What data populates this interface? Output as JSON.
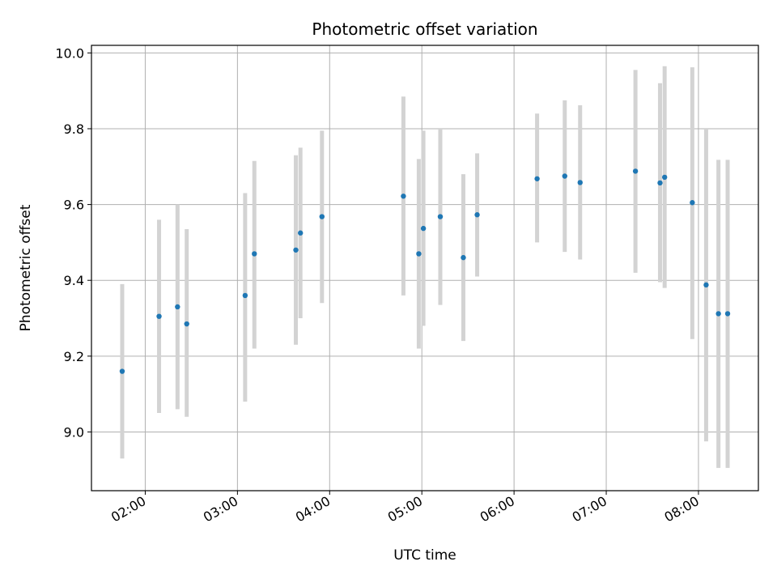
{
  "chart_data": {
    "type": "scatter",
    "title": "Photometric offset variation",
    "xlabel": "UTC time",
    "ylabel": "Photometric offset",
    "xlim": [
      "01:25",
      "08:39"
    ],
    "ylim": [
      8.845,
      10.02
    ],
    "grid": true,
    "x_ticks": [
      "02:00",
      "03:00",
      "04:00",
      "05:00",
      "06:00",
      "07:00",
      "08:00"
    ],
    "y_ticks": [
      "9.0",
      "9.2",
      "9.4",
      "9.6",
      "9.8",
      "10.0"
    ],
    "series": [
      {
        "marker_color": "#1f77b4",
        "errorbar_color": "#d3d3d3",
        "points": [
          {
            "x": "01:45",
            "y": 9.16,
            "low": 8.93,
            "high": 9.39
          },
          {
            "x": "02:09",
            "y": 9.305,
            "low": 9.05,
            "high": 9.56
          },
          {
            "x": "02:21",
            "y": 9.33,
            "low": 9.06,
            "high": 9.6
          },
          {
            "x": "02:27",
            "y": 9.285,
            "low": 9.04,
            "high": 9.535
          },
          {
            "x": "03:05",
            "y": 9.36,
            "low": 9.08,
            "high": 9.63
          },
          {
            "x": "03:11",
            "y": 9.47,
            "low": 9.22,
            "high": 9.715
          },
          {
            "x": "03:38",
            "y": 9.48,
            "low": 9.23,
            "high": 9.73
          },
          {
            "x": "03:41",
            "y": 9.525,
            "low": 9.3,
            "high": 9.75
          },
          {
            "x": "03:55",
            "y": 9.568,
            "low": 9.34,
            "high": 9.795
          },
          {
            "x": "04:48",
            "y": 9.622,
            "low": 9.36,
            "high": 9.885
          },
          {
            "x": "04:58",
            "y": 9.47,
            "low": 9.22,
            "high": 9.72
          },
          {
            "x": "05:01",
            "y": 9.537,
            "low": 9.28,
            "high": 9.795
          },
          {
            "x": "05:12",
            "y": 9.568,
            "low": 9.335,
            "high": 9.8
          },
          {
            "x": "05:27",
            "y": 9.46,
            "low": 9.24,
            "high": 9.68
          },
          {
            "x": "05:36",
            "y": 9.573,
            "low": 9.41,
            "high": 9.735
          },
          {
            "x": "06:15",
            "y": 9.668,
            "low": 9.5,
            "high": 9.84
          },
          {
            "x": "06:33",
            "y": 9.675,
            "low": 9.475,
            "high": 9.875
          },
          {
            "x": "06:43",
            "y": 9.658,
            "low": 9.455,
            "high": 9.862
          },
          {
            "x": "07:19",
            "y": 9.688,
            "low": 9.42,
            "high": 9.955
          },
          {
            "x": "07:35",
            "y": 9.657,
            "low": 9.395,
            "high": 9.92
          },
          {
            "x": "07:38",
            "y": 9.672,
            "low": 9.38,
            "high": 9.965
          },
          {
            "x": "07:56",
            "y": 9.605,
            "low": 9.245,
            "high": 9.962
          },
          {
            "x": "08:05",
            "y": 9.388,
            "low": 8.975,
            "high": 9.8
          },
          {
            "x": "08:13",
            "y": 9.312,
            "low": 8.905,
            "high": 9.718
          },
          {
            "x": "08:19",
            "y": 9.312,
            "low": 8.905,
            "high": 9.718
          }
        ]
      }
    ]
  }
}
